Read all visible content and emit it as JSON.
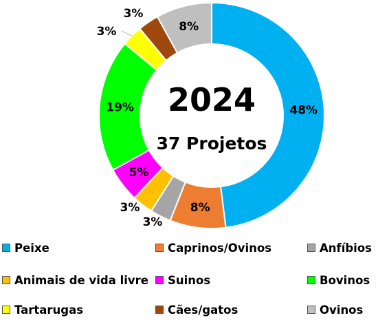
{
  "chart_data": {
    "type": "pie",
    "title": "2024",
    "subtitle": "37 Projetos",
    "categories": [
      "Peixe",
      "Caprinos/Ovinos",
      "Anfíbios",
      "Animais de vida livre",
      "Suinos",
      "Bovinos",
      "Tartarugas",
      "Cães/gatos",
      "Ovinos"
    ],
    "values": [
      48,
      8,
      3,
      3,
      5,
      19,
      3,
      3,
      8
    ],
    "data_labels": [
      "48%",
      "8%",
      "3%",
      "3%",
      "5%",
      "19%",
      "3%",
      "3%",
      "8%"
    ],
    "colors": [
      "#00B0F0",
      "#ED7D31",
      "#A5A5A5",
      "#FFC000",
      "#FF00FF",
      "#00FF00",
      "#FFFF00",
      "#9E480E",
      "#BFBFBF"
    ],
    "legend": "bottom"
  }
}
